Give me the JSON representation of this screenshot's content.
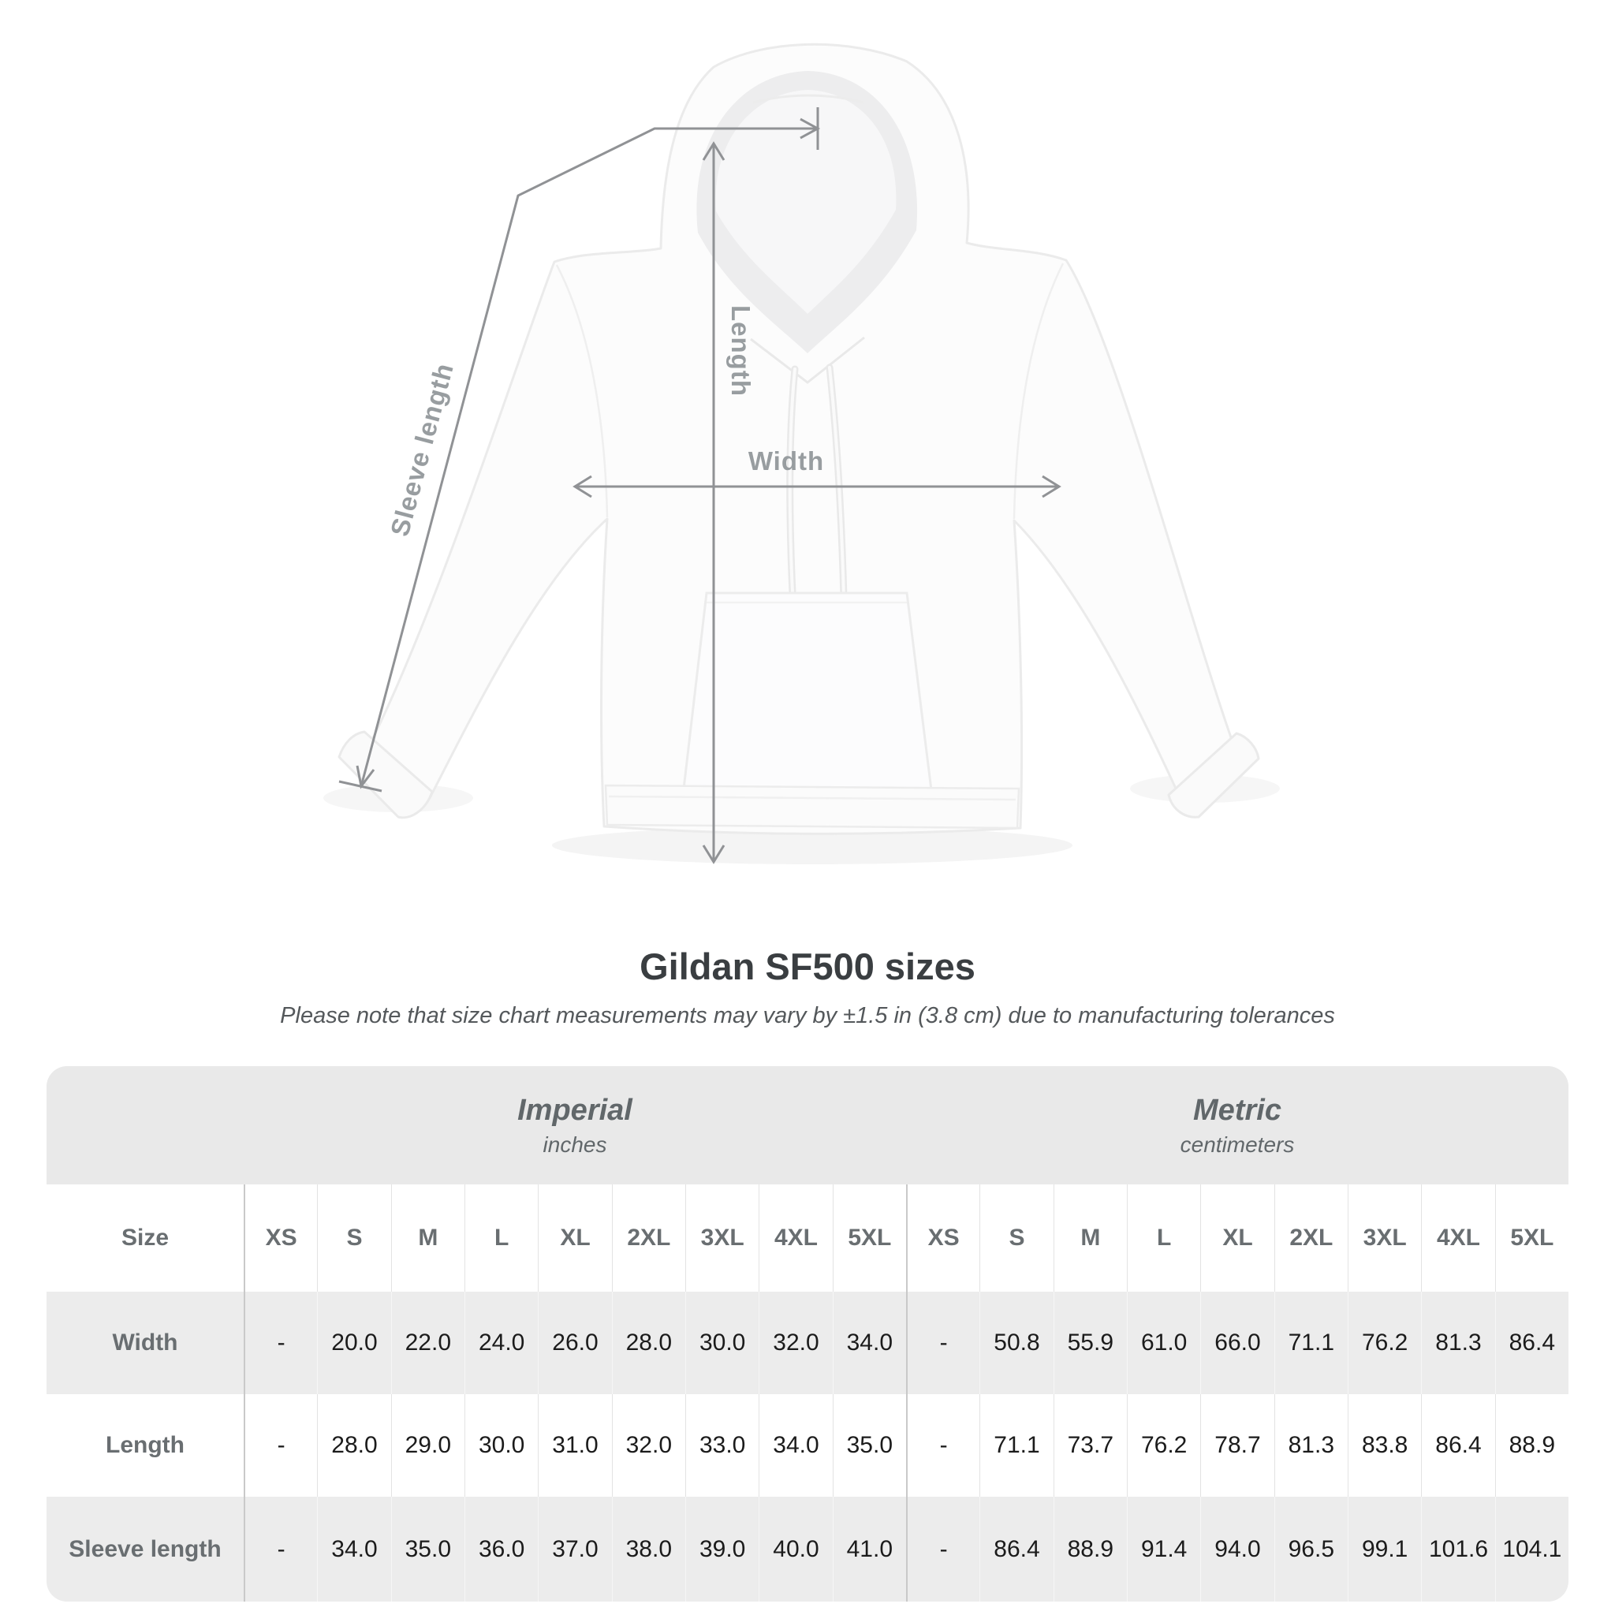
{
  "diagram": {
    "labels": {
      "sleeve": "Sleeve length",
      "length": "Length",
      "width": "Width"
    },
    "line_color": "#909295",
    "label_color": "#989da0"
  },
  "title": "Gildan SF500 sizes",
  "subtitle": "Please note that size chart measurements may vary by ±1.5 in (3.8 cm) due to manufacturing tolerances",
  "table": {
    "size_label": "Size",
    "groups": [
      {
        "name": "Imperial",
        "unit": "inches"
      },
      {
        "name": "Metric",
        "unit": "centimeters"
      }
    ],
    "sizes": [
      "XS",
      "S",
      "M",
      "L",
      "XL",
      "2XL",
      "3XL",
      "4XL",
      "5XL"
    ],
    "rows": [
      {
        "label": "Width",
        "imperial": [
          "-",
          "20.0",
          "22.0",
          "24.0",
          "26.0",
          "28.0",
          "30.0",
          "32.0",
          "34.0"
        ],
        "metric": [
          "-",
          "50.8",
          "55.9",
          "61.0",
          "66.0",
          "71.1",
          "76.2",
          "81.3",
          "86.4"
        ]
      },
      {
        "label": "Length",
        "imperial": [
          "-",
          "28.0",
          "29.0",
          "30.0",
          "31.0",
          "32.0",
          "33.0",
          "34.0",
          "35.0"
        ],
        "metric": [
          "-",
          "71.1",
          "73.7",
          "76.2",
          "78.7",
          "81.3",
          "83.8",
          "86.4",
          "88.9"
        ]
      },
      {
        "label": "Sleeve length",
        "imperial": [
          "-",
          "34.0",
          "35.0",
          "36.0",
          "37.0",
          "38.0",
          "39.0",
          "40.0",
          "41.0"
        ],
        "metric": [
          "-",
          "86.4",
          "88.9",
          "91.4",
          "94.0",
          "96.5",
          "99.1",
          "101.6",
          "104.1"
        ]
      }
    ]
  },
  "chart_data": {
    "type": "table",
    "title": "Gildan SF500 sizes",
    "note": "Please note that size chart measurements may vary by ±1.5 in (3.8 cm) due to manufacturing tolerances",
    "unit_groups": [
      {
        "name": "Imperial",
        "unit": "inches"
      },
      {
        "name": "Metric",
        "unit": "centimeters"
      }
    ],
    "categories": [
      "XS",
      "S",
      "M",
      "L",
      "XL",
      "2XL",
      "3XL",
      "4XL",
      "5XL"
    ],
    "series": [
      {
        "name": "Width (in)",
        "values": [
          null,
          20.0,
          22.0,
          24.0,
          26.0,
          28.0,
          30.0,
          32.0,
          34.0
        ]
      },
      {
        "name": "Length (in)",
        "values": [
          null,
          28.0,
          29.0,
          30.0,
          31.0,
          32.0,
          33.0,
          34.0,
          35.0
        ]
      },
      {
        "name": "Sleeve length (in)",
        "values": [
          null,
          34.0,
          35.0,
          36.0,
          37.0,
          38.0,
          39.0,
          40.0,
          41.0
        ]
      },
      {
        "name": "Width (cm)",
        "values": [
          null,
          50.8,
          55.9,
          61.0,
          66.0,
          71.1,
          76.2,
          81.3,
          86.4
        ]
      },
      {
        "name": "Length (cm)",
        "values": [
          null,
          71.1,
          73.7,
          76.2,
          78.7,
          81.3,
          83.8,
          86.4,
          88.9
        ]
      },
      {
        "name": "Sleeve length (cm)",
        "values": [
          null,
          86.4,
          88.9,
          91.4,
          94.0,
          96.5,
          99.1,
          101.6,
          104.1
        ]
      }
    ]
  }
}
